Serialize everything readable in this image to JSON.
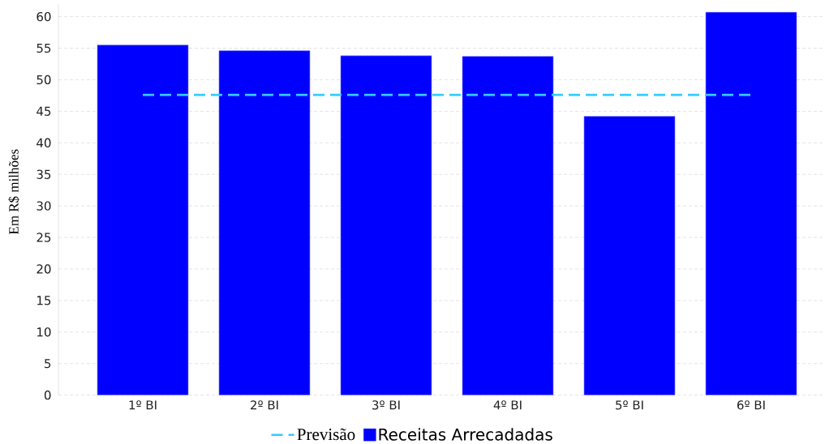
{
  "chart_data": {
    "type": "bar",
    "ylabel": "Em R$ milhões",
    "categories": [
      "1º BI",
      "2º BI",
      "3º BI",
      "4º BI",
      "5º BI",
      "6º BI"
    ],
    "series": [
      {
        "name": "Previsão",
        "type": "line",
        "line_style": "dashed",
        "color": "#33ccff",
        "values": [
          47.6,
          47.6,
          47.6,
          47.6,
          47.6,
          47.6
        ]
      },
      {
        "name": "Receitas Arrecadadas",
        "color": "#0000ff",
        "values": [
          55.5,
          54.6,
          53.8,
          53.7,
          44.2,
          60.7
        ]
      }
    ],
    "ylim": [
      0,
      62
    ],
    "yticks": [
      0,
      5,
      10,
      15,
      20,
      25,
      30,
      35,
      40,
      45,
      50,
      55,
      60
    ],
    "grid": "y",
    "legend": "bottom"
  }
}
